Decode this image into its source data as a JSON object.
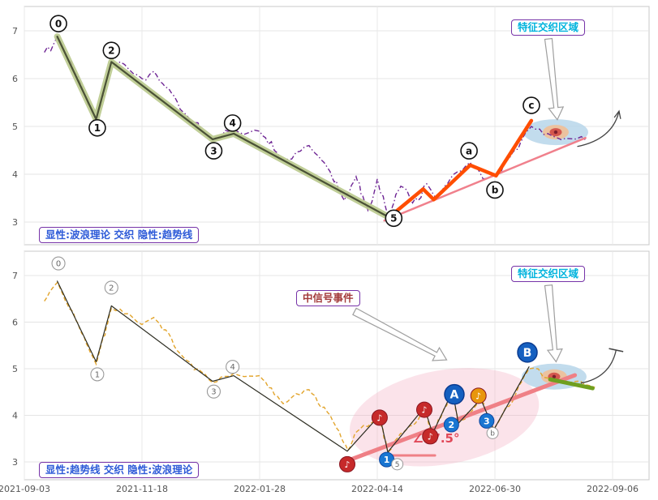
{
  "y_axis_ticks": [
    "7",
    "6",
    "5",
    "4",
    "3"
  ],
  "x_axis_dates": [
    "2021-09-03",
    "2021-11-18",
    "2022-01-28",
    "2022-04-14",
    "2022-06-30",
    "2022-09-06"
  ],
  "top_panel": {
    "caption": "显性:波浪理论 交织 隐性:趋势线",
    "region_label": "特征交织区域"
  },
  "bottom_panel": {
    "caption": "显性:趋势线 交织 隐性:波浪理论",
    "region_label": "特征交织区域",
    "signal_label": "中信号事件",
    "angle_label": "∠37.5°"
  },
  "chart_data": [
    {
      "type": "line",
      "panel": "top",
      "title": "",
      "x_unit": "date-tick-index",
      "x_tick_labels": [
        "2021-09-03",
        "2021-11-18",
        "2022-01-28",
        "2022-04-14",
        "2022-06-30",
        "2022-09-06"
      ],
      "y_ticks": [
        7,
        6,
        5,
        4,
        3
      ],
      "ylim": [
        2.6,
        7.5
      ],
      "grid": true,
      "series": [
        {
          "name": "price",
          "color": "#6e2594",
          "dash": "6 3 1.5 3",
          "width": 1.4,
          "noise": 0.09,
          "seed": 7,
          "points": [
            [
              0.17,
              6.55
            ],
            [
              0.28,
              6.88
            ],
            [
              0.61,
              5.15
            ],
            [
              0.74,
              6.35
            ],
            [
              1.0,
              6.0
            ],
            [
              1.1,
              6.15
            ],
            [
              1.35,
              5.3
            ],
            [
              1.6,
              4.73
            ],
            [
              1.78,
              4.95
            ],
            [
              2.0,
              4.9
            ],
            [
              2.2,
              4.3
            ],
            [
              2.42,
              4.6
            ],
            [
              2.6,
              4.05
            ],
            [
              2.72,
              3.45
            ],
            [
              2.82,
              3.95
            ],
            [
              2.92,
              3.25
            ],
            [
              3.0,
              3.9
            ],
            [
              3.1,
              3.1
            ],
            [
              3.2,
              3.75
            ],
            [
              3.3,
              3.4
            ],
            [
              3.42,
              3.8
            ],
            [
              3.5,
              3.5
            ],
            [
              3.65,
              4.0
            ],
            [
              3.79,
              4.25
            ],
            [
              3.9,
              3.9
            ],
            [
              4.01,
              4.0
            ],
            [
              4.15,
              4.45
            ],
            [
              4.31,
              5.0
            ],
            [
              4.45,
              4.85
            ],
            [
              4.6,
              4.75
            ],
            [
              4.78,
              4.7
            ]
          ]
        },
        {
          "name": "trendline",
          "color": "#f0808c",
          "width": 2.5,
          "points": [
            [
              3.06,
              3.03
            ],
            [
              4.77,
              4.76
            ]
          ]
        },
        {
          "name": "elliott-impulse-0-5",
          "color": "#4a5136",
          "halo": "#b9c98c",
          "width": 2.2,
          "halo_width": 8,
          "points": [
            [
              0.28,
              6.88
            ],
            [
              0.61,
              5.15
            ],
            [
              0.74,
              6.35
            ],
            [
              1.6,
              4.73
            ],
            [
              1.78,
              4.85
            ],
            [
              3.1,
              3.1
            ]
          ]
        },
        {
          "name": "abc-correction",
          "color": "#ff4d00",
          "width": 4.5,
          "points": [
            [
              3.1,
              3.1
            ],
            [
              3.39,
              3.69
            ],
            [
              3.48,
              3.47
            ],
            [
              3.79,
              4.19
            ],
            [
              4.01,
              3.97
            ],
            [
              4.31,
              5.12
            ]
          ]
        }
      ],
      "wave_labels": [
        {
          "text": "0",
          "t": 0.29,
          "price": 7.15
        },
        {
          "text": "1",
          "t": 0.62,
          "price": 4.97
        },
        {
          "text": "2",
          "t": 0.74,
          "price": 6.59
        },
        {
          "text": "3",
          "t": 1.61,
          "price": 4.49
        },
        {
          "text": "4",
          "t": 1.77,
          "price": 5.07
        },
        {
          "text": "5",
          "t": 3.14,
          "price": 3.08
        },
        {
          "text": "a",
          "t": 3.78,
          "price": 4.49
        },
        {
          "text": "b",
          "t": 4.0,
          "price": 3.67
        },
        {
          "text": "c",
          "t": 4.31,
          "price": 5.44
        }
      ],
      "target": {
        "t": 4.517,
        "price": 4.88
      },
      "arrows": {
        "region": {
          "from": [
            4.455,
            6.83
          ],
          "to": [
            4.53,
            5.14
          ]
        },
        "curve": {
          "from": [
            4.7,
            4.58
          ],
          "ctrl": [
            5.0,
            4.73
          ],
          "to": [
            5.055,
            5.32
          ],
          "head": "arrow"
        }
      }
    },
    {
      "type": "line",
      "panel": "bottom",
      "title": "",
      "x_unit": "date-tick-index",
      "x_tick_labels": [
        "2021-09-03",
        "2021-11-18",
        "2022-01-28",
        "2022-04-14",
        "2022-06-30",
        "2022-09-06"
      ],
      "y_ticks": [
        7,
        6,
        5,
        4,
        3
      ],
      "ylim": [
        2.6,
        7.5
      ],
      "grid": true,
      "series": [
        {
          "name": "price",
          "color": "#e2a42b",
          "dash": "5 3",
          "width": 1.4,
          "noise": 0.07,
          "seed": 13,
          "points": [
            [
              0.17,
              6.45
            ],
            [
              0.28,
              6.85
            ],
            [
              0.61,
              5.1
            ],
            [
              0.74,
              6.3
            ],
            [
              1.0,
              5.95
            ],
            [
              1.1,
              6.1
            ],
            [
              1.35,
              5.25
            ],
            [
              1.6,
              4.7
            ],
            [
              1.78,
              4.9
            ],
            [
              2.0,
              4.85
            ],
            [
              2.2,
              4.25
            ],
            [
              2.42,
              4.55
            ],
            [
              2.6,
              4.0
            ],
            [
              2.75,
              3.25
            ],
            [
              2.85,
              3.7
            ],
            [
              3.02,
              4.0
            ],
            [
              3.09,
              3.2
            ],
            [
              3.25,
              3.7
            ],
            [
              3.4,
              4.15
            ],
            [
              3.47,
              3.6
            ],
            [
              3.64,
              4.5
            ],
            [
              3.69,
              3.85
            ],
            [
              3.88,
              4.35
            ],
            [
              3.99,
              3.7
            ],
            [
              4.29,
              5.0
            ],
            [
              4.45,
              4.8
            ],
            [
              4.6,
              4.72
            ],
            [
              4.85,
              4.6
            ]
          ]
        },
        {
          "name": "trendline",
          "color": "#ef8086",
          "width": 5,
          "points": [
            [
              2.72,
              3.0
            ],
            [
              4.68,
              4.86
            ]
          ]
        },
        {
          "name": "breakout-segment",
          "color": "#6f9f1f",
          "width": 5,
          "points": [
            [
              4.47,
              4.77
            ],
            [
              4.83,
              4.58
            ]
          ]
        },
        {
          "name": "wave-zigzag",
          "color": "#2d2d22",
          "width": 1.2,
          "points": [
            [
              0.28,
              6.88
            ],
            [
              0.61,
              5.15
            ],
            [
              0.74,
              6.35
            ],
            [
              1.6,
              4.73
            ],
            [
              1.78,
              4.85
            ],
            [
              2.745,
              3.23
            ],
            [
              3.02,
              4.0
            ],
            [
              3.09,
              3.21
            ],
            [
              3.4,
              4.17
            ],
            [
              3.47,
              3.61
            ],
            [
              3.64,
              4.52
            ],
            [
              3.69,
              3.83
            ],
            [
              3.88,
              4.35
            ],
            [
              3.99,
              3.69
            ],
            [
              4.29,
              5.04
            ]
          ]
        }
      ],
      "wave_labels": [
        {
          "text": "0",
          "t": 0.29,
          "price": 7.26
        },
        {
          "text": "1",
          "t": 0.62,
          "price": 4.88
        },
        {
          "text": "2",
          "t": 0.74,
          "price": 6.74
        },
        {
          "text": "3",
          "t": 1.61,
          "price": 4.51
        },
        {
          "text": "4",
          "t": 1.77,
          "price": 5.04
        }
      ],
      "markers": [
        {
          "type": "note",
          "label": "♪",
          "color": "#c62a2a",
          "t": 2.745,
          "price": 2.95
        },
        {
          "type": "note",
          "label": "♪",
          "color": "#c62a2a",
          "t": 3.02,
          "price": 3.95
        },
        {
          "type": "note",
          "label": "♪",
          "color": "#c62a2a",
          "t": 3.4,
          "price": 4.12
        },
        {
          "type": "note",
          "label": "♪",
          "color": "#c62a2a",
          "t": 3.45,
          "price": 3.55
        },
        {
          "type": "note",
          "label": "♪",
          "color": "#e8960c",
          "t": 3.86,
          "price": 4.42
        },
        {
          "type": "num",
          "label": "1",
          "color": "#1976d2",
          "t": 3.08,
          "price": 3.05
        },
        {
          "type": "num",
          "label": "2",
          "color": "#1976d2",
          "t": 3.63,
          "price": 3.8
        },
        {
          "type": "num",
          "label": "3",
          "color": "#1976d2",
          "t": 3.93,
          "price": 3.88
        },
        {
          "type": "big",
          "label": "A",
          "color": "#1560c0",
          "t": 3.655,
          "price": 4.45
        },
        {
          "type": "big",
          "label": "B",
          "color": "#1560c0",
          "t": 4.276,
          "price": 5.35
        },
        {
          "type": "small",
          "label": "5",
          "color": "#ffffff",
          "t": 3.17,
          "price": 2.95
        },
        {
          "type": "small",
          "label": "b",
          "color": "#ffffff",
          "t": 3.98,
          "price": 3.62
        }
      ],
      "region_highlight": {
        "t": 3.57,
        "price": 3.96,
        "rx": 118,
        "ry": 58,
        "rotate": -10,
        "color": "#f2aabe",
        "opacity": 0.33
      },
      "target": {
        "t": 4.503,
        "price": 4.83
      },
      "angle": {
        "label_t": 3.5,
        "label_price": 3.42,
        "color": "#e04858",
        "baseline": [
          [
            3.09,
            3.14
          ],
          [
            3.49,
            3.14
          ]
        ]
      },
      "arrows": {
        "region": {
          "from": [
            4.455,
            6.79
          ],
          "to": [
            4.52,
            5.15
          ]
        },
        "signal": {
          "from": [
            2.807,
            6.23
          ],
          "to": [
            3.59,
            5.19
          ]
        },
        "curve": {
          "from": [
            4.73,
            4.69
          ],
          "ctrl": [
            4.98,
            4.81
          ],
          "to": [
            5.03,
            5.4
          ],
          "head": "tbar"
        }
      }
    }
  ]
}
